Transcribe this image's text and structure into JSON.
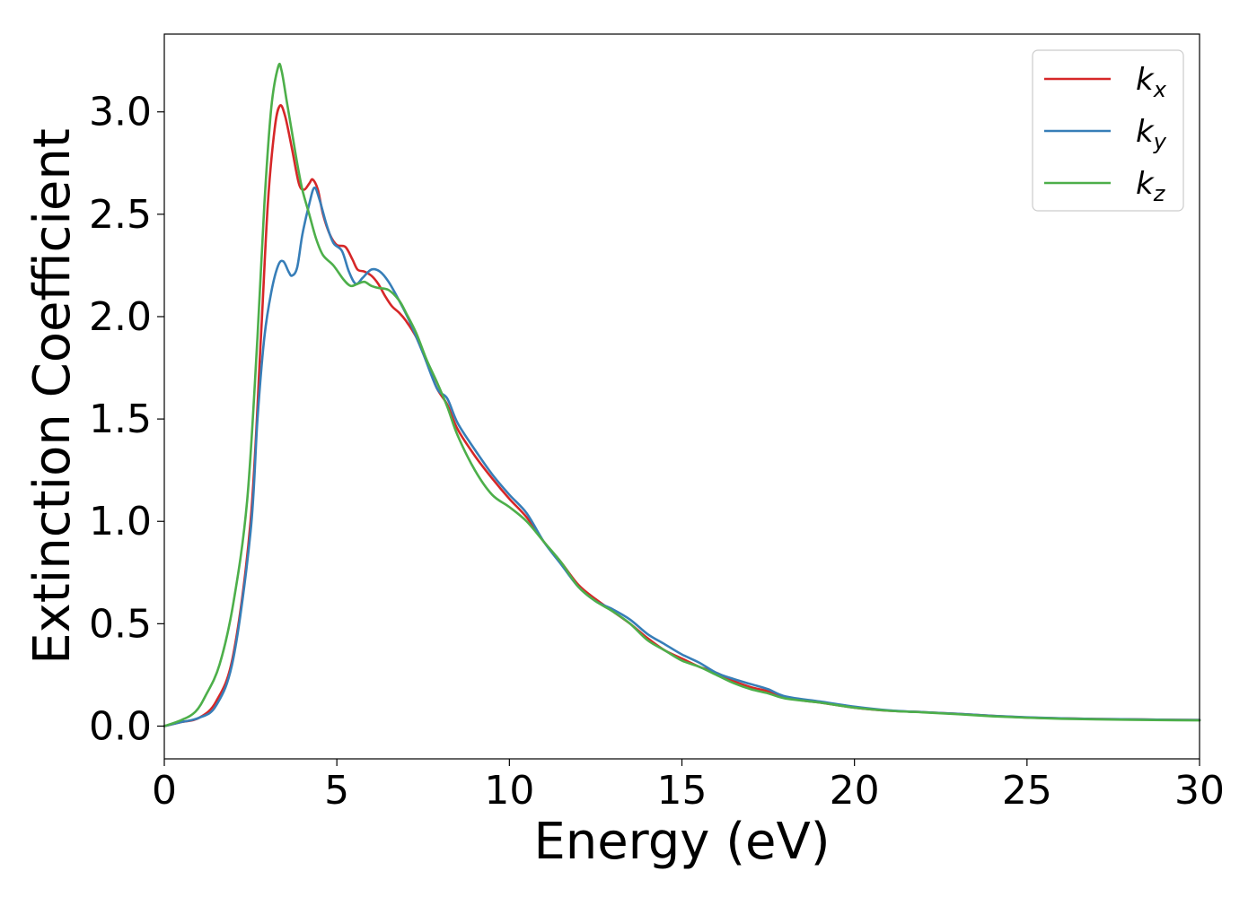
{
  "chart_data": {
    "type": "line",
    "xlabel": "Energy (eV)",
    "ylabel": "Extinction Coefficient",
    "xlim": [
      0,
      30
    ],
    "ylim": [
      -0.16,
      3.38
    ],
    "xticks": [
      0,
      5,
      10,
      15,
      20,
      25,
      30
    ],
    "xtick_labels": [
      "0",
      "5",
      "10",
      "15",
      "20",
      "25",
      "30"
    ],
    "yticks": [
      0.0,
      0.5,
      1.0,
      1.5,
      2.0,
      2.5,
      3.0
    ],
    "ytick_labels": [
      "0.0",
      "0.5",
      "1.0",
      "1.5",
      "2.0",
      "2.5",
      "3.0"
    ],
    "grid": false,
    "legend": "top-right",
    "series": [
      {
        "name": "k",
        "subscript": "x",
        "color": "#d62728",
        "points": [
          [
            0,
            0
          ],
          [
            0.5,
            0.02
          ],
          [
            1.0,
            0.04
          ],
          [
            1.5,
            0.12
          ],
          [
            2.0,
            0.35
          ],
          [
            2.5,
            1.0
          ],
          [
            2.8,
            1.9
          ],
          [
            3.0,
            2.55
          ],
          [
            3.2,
            2.92
          ],
          [
            3.35,
            3.03
          ],
          [
            3.5,
            2.98
          ],
          [
            3.7,
            2.82
          ],
          [
            3.9,
            2.65
          ],
          [
            4.05,
            2.62
          ],
          [
            4.2,
            2.65
          ],
          [
            4.3,
            2.67
          ],
          [
            4.45,
            2.62
          ],
          [
            4.6,
            2.5
          ],
          [
            4.8,
            2.4
          ],
          [
            5.0,
            2.35
          ],
          [
            5.25,
            2.34
          ],
          [
            5.45,
            2.28
          ],
          [
            5.6,
            2.23
          ],
          [
            5.8,
            2.22
          ],
          [
            6.0,
            2.2
          ],
          [
            6.2,
            2.16
          ],
          [
            6.4,
            2.1
          ],
          [
            6.6,
            2.05
          ],
          [
            6.8,
            2.02
          ],
          [
            7.0,
            1.98
          ],
          [
            7.3,
            1.9
          ],
          [
            7.6,
            1.78
          ],
          [
            7.9,
            1.65
          ],
          [
            8.2,
            1.57
          ],
          [
            8.5,
            1.45
          ],
          [
            9.0,
            1.32
          ],
          [
            9.5,
            1.21
          ],
          [
            10.0,
            1.11
          ],
          [
            10.5,
            1.02
          ],
          [
            11.0,
            0.9
          ],
          [
            11.5,
            0.8
          ],
          [
            12.0,
            0.69
          ],
          [
            12.5,
            0.62
          ],
          [
            13.0,
            0.56
          ],
          [
            13.5,
            0.5
          ],
          [
            14.0,
            0.43
          ],
          [
            14.5,
            0.37
          ],
          [
            15.0,
            0.33
          ],
          [
            15.5,
            0.29
          ],
          [
            16.0,
            0.26
          ],
          [
            16.5,
            0.22
          ],
          [
            17.0,
            0.19
          ],
          [
            17.5,
            0.17
          ],
          [
            18.0,
            0.14
          ],
          [
            18.5,
            0.125
          ],
          [
            19.0,
            0.115
          ],
          [
            20.0,
            0.09
          ],
          [
            21.0,
            0.075
          ],
          [
            22.0,
            0.068
          ],
          [
            23.0,
            0.06
          ],
          [
            24.0,
            0.05
          ],
          [
            25.0,
            0.042
          ],
          [
            26.0,
            0.038
          ],
          [
            27.0,
            0.035
          ],
          [
            28.0,
            0.033
          ],
          [
            29.0,
            0.031
          ],
          [
            30.0,
            0.03
          ]
        ]
      },
      {
        "name": "k",
        "subscript": "y",
        "color": "#377eb8",
        "points": [
          [
            0,
            0
          ],
          [
            0.5,
            0.02
          ],
          [
            1.0,
            0.04
          ],
          [
            1.5,
            0.1
          ],
          [
            2.0,
            0.33
          ],
          [
            2.5,
            0.95
          ],
          [
            2.7,
            1.5
          ],
          [
            2.9,
            1.9
          ],
          [
            3.1,
            2.12
          ],
          [
            3.3,
            2.25
          ],
          [
            3.45,
            2.27
          ],
          [
            3.6,
            2.22
          ],
          [
            3.7,
            2.2
          ],
          [
            3.85,
            2.24
          ],
          [
            4.0,
            2.4
          ],
          [
            4.2,
            2.55
          ],
          [
            4.35,
            2.63
          ],
          [
            4.5,
            2.57
          ],
          [
            4.7,
            2.45
          ],
          [
            4.9,
            2.36
          ],
          [
            5.15,
            2.32
          ],
          [
            5.35,
            2.22
          ],
          [
            5.55,
            2.16
          ],
          [
            5.75,
            2.19
          ],
          [
            6.0,
            2.23
          ],
          [
            6.25,
            2.22
          ],
          [
            6.5,
            2.17
          ],
          [
            6.8,
            2.08
          ],
          [
            7.1,
            1.98
          ],
          [
            7.5,
            1.82
          ],
          [
            7.9,
            1.65
          ],
          [
            8.2,
            1.6
          ],
          [
            8.5,
            1.48
          ],
          [
            9.0,
            1.35
          ],
          [
            9.5,
            1.23
          ],
          [
            10.0,
            1.13
          ],
          [
            10.5,
            1.04
          ],
          [
            11.0,
            0.9
          ],
          [
            11.5,
            0.79
          ],
          [
            12.0,
            0.68
          ],
          [
            12.5,
            0.61
          ],
          [
            13.0,
            0.57
          ],
          [
            13.5,
            0.52
          ],
          [
            14.0,
            0.45
          ],
          [
            14.5,
            0.4
          ],
          [
            15.0,
            0.35
          ],
          [
            15.5,
            0.31
          ],
          [
            16.0,
            0.26
          ],
          [
            16.5,
            0.23
          ],
          [
            17.0,
            0.205
          ],
          [
            17.5,
            0.18
          ],
          [
            18.0,
            0.145
          ],
          [
            19.0,
            0.12
          ],
          [
            20.0,
            0.095
          ],
          [
            21.0,
            0.077
          ],
          [
            22.0,
            0.068
          ],
          [
            23.0,
            0.06
          ],
          [
            24.0,
            0.05
          ],
          [
            25.0,
            0.043
          ],
          [
            26.0,
            0.038
          ],
          [
            27.0,
            0.035
          ],
          [
            28.0,
            0.033
          ],
          [
            29.0,
            0.031
          ],
          [
            30.0,
            0.03
          ]
        ]
      },
      {
        "name": "k",
        "subscript": "z",
        "color": "#4daf4a",
        "points": [
          [
            0,
            0
          ],
          [
            0.5,
            0.03
          ],
          [
            0.9,
            0.07
          ],
          [
            1.2,
            0.15
          ],
          [
            1.6,
            0.3
          ],
          [
            2.0,
            0.6
          ],
          [
            2.4,
            1.1
          ],
          [
            2.7,
            1.9
          ],
          [
            2.9,
            2.55
          ],
          [
            3.1,
            3.02
          ],
          [
            3.3,
            3.22
          ],
          [
            3.4,
            3.2
          ],
          [
            3.55,
            3.05
          ],
          [
            3.7,
            2.9
          ],
          [
            3.85,
            2.75
          ],
          [
            4.0,
            2.62
          ],
          [
            4.2,
            2.5
          ],
          [
            4.4,
            2.38
          ],
          [
            4.6,
            2.3
          ],
          [
            4.9,
            2.25
          ],
          [
            5.2,
            2.18
          ],
          [
            5.4,
            2.15
          ],
          [
            5.6,
            2.16
          ],
          [
            5.8,
            2.17
          ],
          [
            6.0,
            2.15
          ],
          [
            6.2,
            2.14
          ],
          [
            6.5,
            2.13
          ],
          [
            6.8,
            2.08
          ],
          [
            7.0,
            2.02
          ],
          [
            7.3,
            1.92
          ],
          [
            7.6,
            1.79
          ],
          [
            7.9,
            1.68
          ],
          [
            8.2,
            1.56
          ],
          [
            8.5,
            1.42
          ],
          [
            9.0,
            1.25
          ],
          [
            9.5,
            1.13
          ],
          [
            10.0,
            1.07
          ],
          [
            10.5,
            1.0
          ],
          [
            11.0,
            0.9
          ],
          [
            11.5,
            0.8
          ],
          [
            12.0,
            0.68
          ],
          [
            12.5,
            0.61
          ],
          [
            13.0,
            0.56
          ],
          [
            13.5,
            0.5
          ],
          [
            14.0,
            0.42
          ],
          [
            14.5,
            0.37
          ],
          [
            15.0,
            0.32
          ],
          [
            15.5,
            0.29
          ],
          [
            16.0,
            0.25
          ],
          [
            16.5,
            0.21
          ],
          [
            17.0,
            0.18
          ],
          [
            17.5,
            0.16
          ],
          [
            18.0,
            0.135
          ],
          [
            19.0,
            0.115
          ],
          [
            20.0,
            0.09
          ],
          [
            21.0,
            0.075
          ],
          [
            22.0,
            0.067
          ],
          [
            23.0,
            0.058
          ],
          [
            24.0,
            0.048
          ],
          [
            25.0,
            0.041
          ],
          [
            26.0,
            0.036
          ],
          [
            27.0,
            0.033
          ],
          [
            28.0,
            0.031
          ],
          [
            29.0,
            0.029
          ],
          [
            30.0,
            0.028
          ]
        ]
      }
    ]
  }
}
